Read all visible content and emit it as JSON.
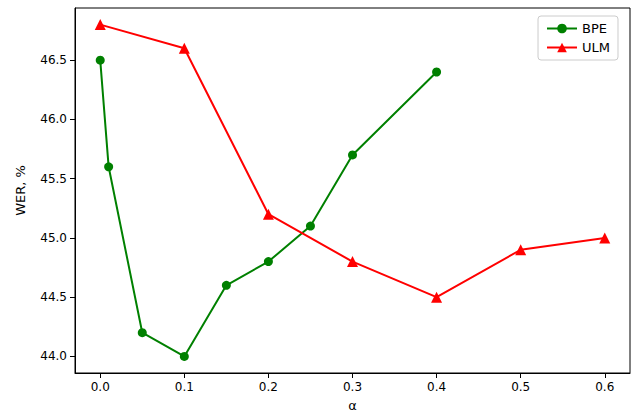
{
  "chart_data": {
    "type": "line",
    "x_label": "α",
    "y_label": "WER, %",
    "xlim": [
      -0.03,
      0.63
    ],
    "ylim": [
      43.86,
      46.94
    ],
    "xticks": [
      {
        "value": 0,
        "label": "0.0"
      },
      {
        "value": 0.1,
        "label": "0.1"
      },
      {
        "value": 0.2,
        "label": "0.2"
      },
      {
        "value": 0.3,
        "label": "0.3"
      },
      {
        "value": 0.4,
        "label": "0.4"
      },
      {
        "value": 0.5,
        "label": "0.5"
      },
      {
        "value": 0.6,
        "label": "0.6"
      }
    ],
    "yticks": [
      {
        "value": 44,
        "label": "44.0"
      },
      {
        "value": 44.5,
        "label": "44.5"
      },
      {
        "value": 45,
        "label": "45.0"
      },
      {
        "value": 45.5,
        "label": "45.5"
      },
      {
        "value": 46,
        "label": "46.0"
      },
      {
        "value": 46.5,
        "label": "46.5"
      }
    ],
    "grid": false,
    "legend": "upper right",
    "series": [
      {
        "name": "BPE",
        "color": "#008000",
        "marker": "circle",
        "x": [
          0,
          0.01,
          0.05,
          0.1,
          0.15,
          0.2,
          0.25,
          0.3,
          0.4
        ],
        "values": [
          46.5,
          45.6,
          44.2,
          44.0,
          44.6,
          44.8,
          45.1,
          45.7,
          46.4
        ]
      },
      {
        "name": "ULM",
        "color": "#ff0000",
        "marker": "triangle",
        "x": [
          0,
          0.1,
          0.2,
          0.3,
          0.4,
          0.5,
          0.6
        ],
        "values": [
          46.8,
          46.6,
          45.2,
          44.8,
          44.5,
          44.9,
          45.0
        ]
      }
    ]
  }
}
